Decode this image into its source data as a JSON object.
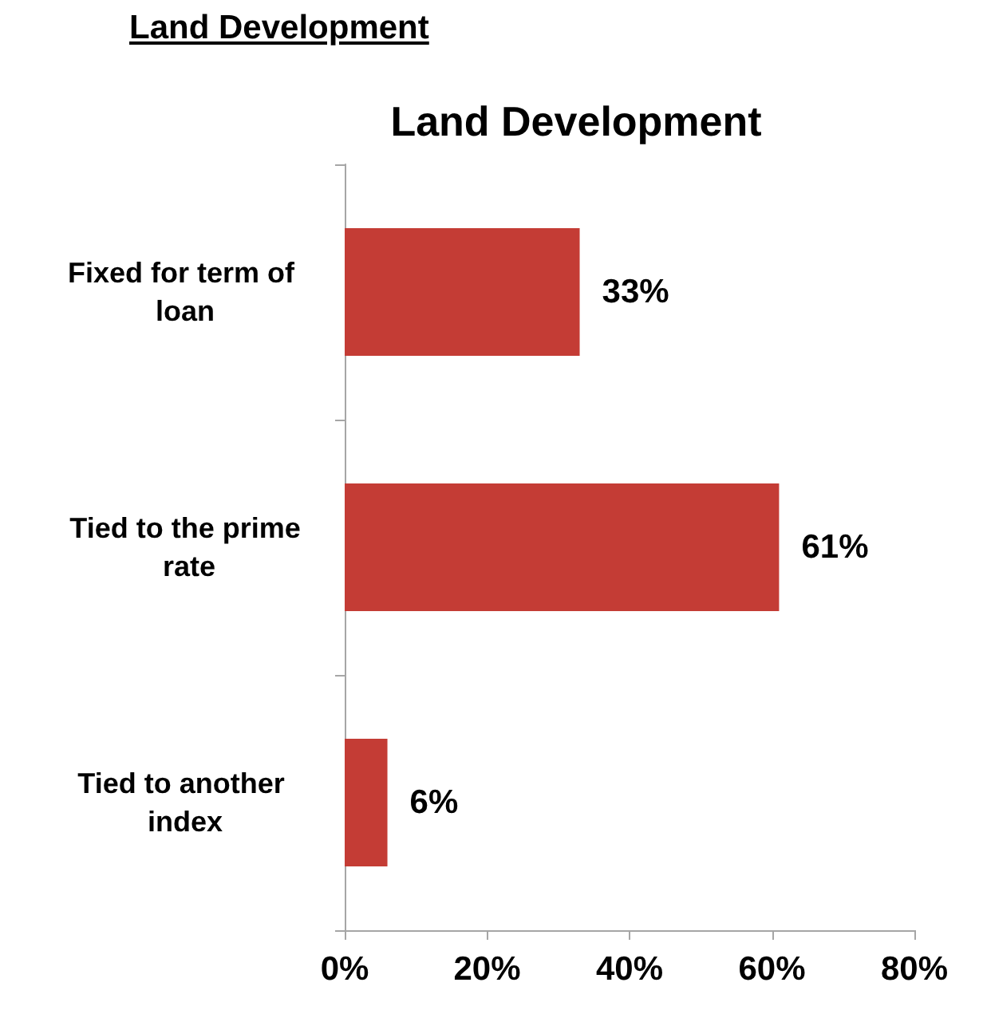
{
  "chart_data": {
    "type": "bar",
    "orientation": "horizontal",
    "title": "Land Development",
    "annotations": [
      "Land Development"
    ],
    "categories": [
      "Fixed for term of loan",
      "Tied to the prime rate",
      "Tied to another index"
    ],
    "values": [
      33,
      61,
      6
    ],
    "value_labels": [
      "33%",
      "61%",
      "6%"
    ],
    "color": "#c43c35",
    "xlim": [
      0,
      80
    ],
    "xticks": [
      {
        "value": 0,
        "label": "0%"
      },
      {
        "value": 20,
        "label": "20%"
      },
      {
        "value": 40,
        "label": "40%"
      },
      {
        "value": 60,
        "label": "60%"
      },
      {
        "value": 80,
        "label": "80%"
      }
    ],
    "grid": false
  }
}
